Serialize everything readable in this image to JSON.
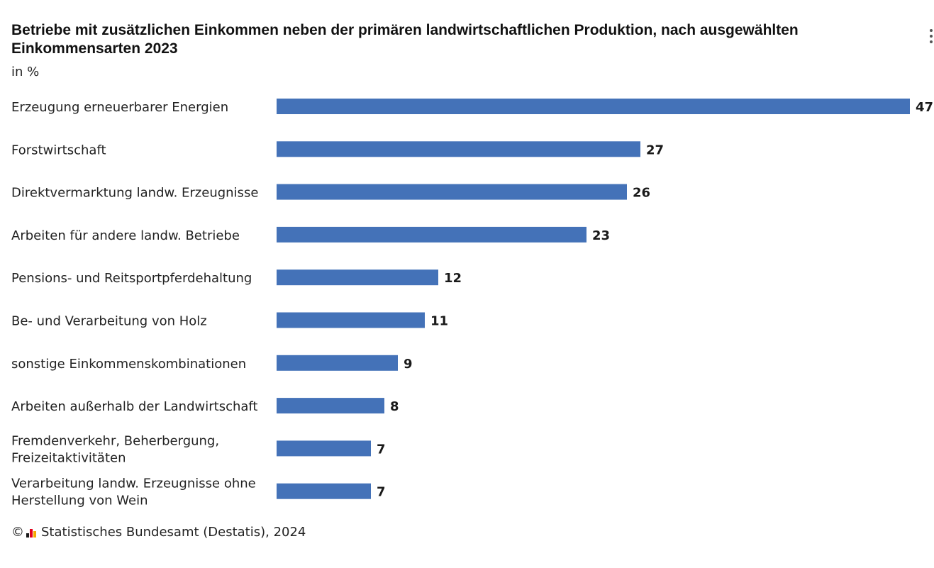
{
  "title": "Betriebe mit zusätzlichen Einkommen neben der primären landwirtschaftlichen Produktion, nach ausgewählten Einkommensarten 2023",
  "subtitle": "in %",
  "menu_icon": "more-vertical-icon",
  "footer": {
    "copyright": "©",
    "logo_icon": "destatis-logo-icon",
    "source": "Statistisches Bundesamt (Destatis), 2024"
  },
  "colors": {
    "bar": "#4472b8",
    "logo": [
      "#1a1a1a",
      "#e2001a",
      "#f5a800"
    ]
  },
  "chart_data": {
    "type": "bar",
    "orientation": "horizontal",
    "title": "Betriebe mit zusätzlichen Einkommen neben der primären landwirtschaftlichen Produktion, nach ausgewählten Einkommensarten 2023",
    "unit": "in %",
    "xlim": [
      0,
      47
    ],
    "grid": false,
    "legend": "none",
    "categories": [
      [
        "Erzeugung erneuerbarer Energien"
      ],
      [
        "Forstwirtschaft"
      ],
      [
        "Direktvermarktung landw. Erzeugnisse"
      ],
      [
        "Arbeiten für andere landw. Betriebe"
      ],
      [
        "Pensions- und Reitsportpferdehaltung"
      ],
      [
        "Be- und Verarbeitung von Holz"
      ],
      [
        "sonstige Einkommenskombinationen"
      ],
      [
        "Arbeiten außerhalb der Landwirtschaft"
      ],
      [
        "Fremdenverkehr, Beherbergung,",
        "Freizeitaktivitäten"
      ],
      [
        "Verarbeitung landw. Erzeugnisse ohne",
        "Herstellung von Wein"
      ]
    ],
    "values": [
      47,
      27,
      26,
      23,
      12,
      11,
      9,
      8,
      7,
      7
    ]
  }
}
